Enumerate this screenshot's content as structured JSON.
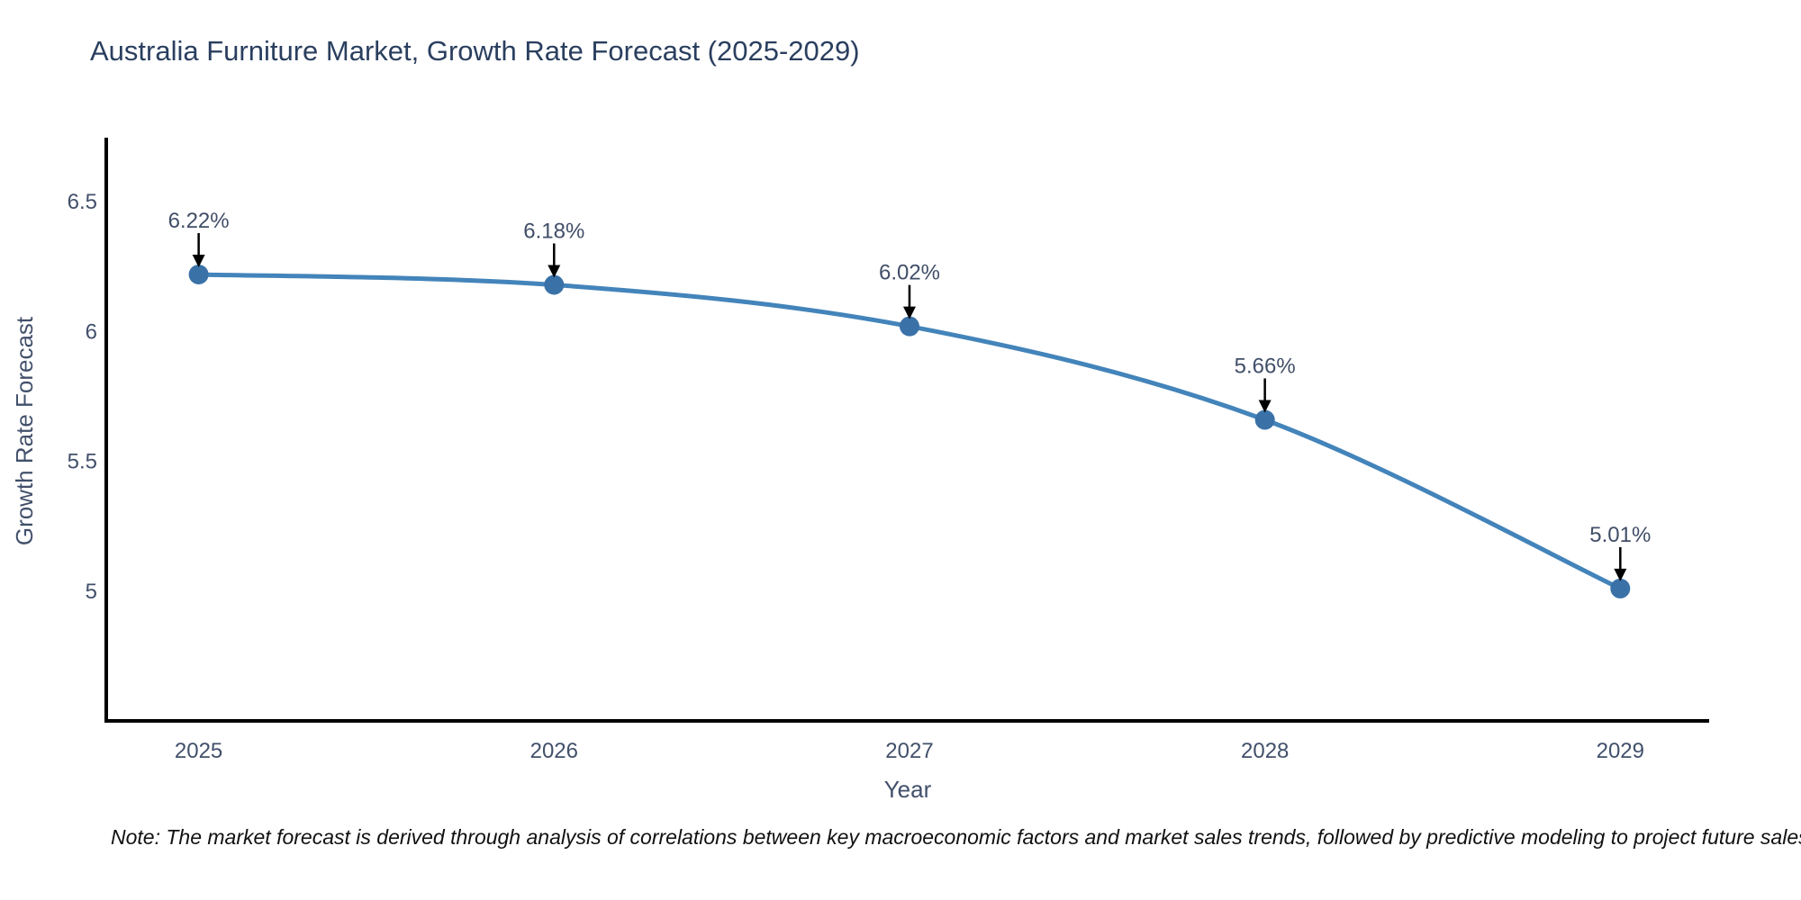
{
  "chart_data": {
    "type": "line",
    "title": "Australia Furniture Market, Growth Rate Forecast (2025-2029)",
    "xlabel": "Year",
    "ylabel": "Growth Rate Forecast",
    "categories": [
      2025,
      2026,
      2027,
      2028,
      2029
    ],
    "values": [
      6.22,
      6.18,
      6.02,
      5.66,
      5.01
    ],
    "point_labels": [
      "6.22%",
      "6.18%",
      "6.02%",
      "5.66%",
      "5.01%"
    ],
    "yticks": [
      6.5,
      6,
      5.5,
      5
    ],
    "ytick_labels": [
      "6.5",
      "6",
      "5.5",
      "5"
    ],
    "xtick_labels": [
      "2025",
      "2026",
      "2027",
      "2028",
      "2029"
    ],
    "xlim": [
      2024.74,
      2029.25
    ],
    "ylim": [
      4.5,
      6.74
    ],
    "grid": false,
    "legend": false,
    "line_shape": "spline",
    "line_color": "#4384ba",
    "marker_color": "#3a72a8",
    "marker_size": 11,
    "annotation_arrow_color": "#000000",
    "annotation_text_color": "#414e68",
    "axis_line_color": "#000000",
    "tick_color": "#42506b"
  },
  "note": {
    "text": "Note: The market forecast is derived through analysis of correlations between key macroeconomic factors and market sales trends, followed by predictive modeling to project future sales"
  },
  "colors": {
    "background": "#ffffff",
    "title": "#2a3f5f"
  }
}
